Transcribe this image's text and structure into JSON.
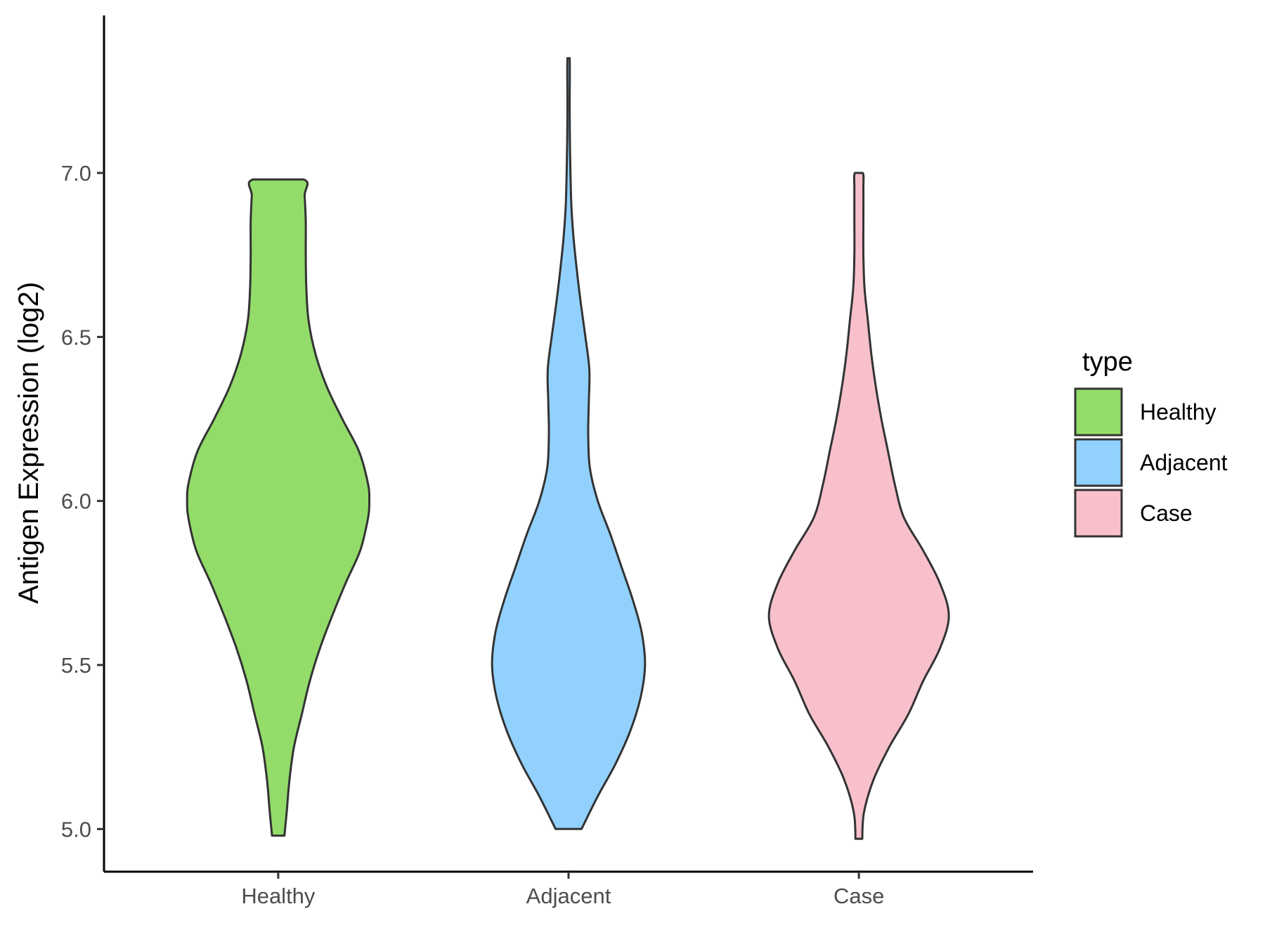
{
  "chart_data": {
    "type": "violin",
    "title": "",
    "xlabel": "",
    "ylabel": "Antigen Expression (log2)",
    "ylim": [
      4.87,
      7.48
    ],
    "yticks": [
      5.0,
      5.5,
      6.0,
      6.5,
      7.0
    ],
    "ytick_labels": [
      "5.0",
      "5.5",
      "6.0",
      "6.5",
      "7.0"
    ],
    "categories": [
      "Healthy",
      "Adjacent",
      "Case"
    ],
    "grid": false,
    "legend": {
      "title": "type",
      "position": "right",
      "entries": [
        "Healthy",
        "Adjacent",
        "Case"
      ]
    },
    "series": [
      {
        "name": "Healthy",
        "color": "#93DC6A",
        "min": 4.98,
        "max": 6.98,
        "density": [
          [
            4.98,
            0.055
          ],
          [
            5.05,
            0.075
          ],
          [
            5.15,
            0.1
          ],
          [
            5.25,
            0.14
          ],
          [
            5.35,
            0.21
          ],
          [
            5.45,
            0.28
          ],
          [
            5.55,
            0.37
          ],
          [
            5.65,
            0.48
          ],
          [
            5.75,
            0.6
          ],
          [
            5.85,
            0.73
          ],
          [
            5.95,
            0.8
          ],
          [
            6.0,
            0.81
          ],
          [
            6.05,
            0.8
          ],
          [
            6.15,
            0.72
          ],
          [
            6.25,
            0.57
          ],
          [
            6.35,
            0.43
          ],
          [
            6.45,
            0.33
          ],
          [
            6.55,
            0.27
          ],
          [
            6.65,
            0.25
          ],
          [
            6.75,
            0.245
          ],
          [
            6.85,
            0.245
          ],
          [
            6.93,
            0.235
          ],
          [
            6.98,
            0.225
          ]
        ]
      },
      {
        "name": "Adjacent",
        "color": "#92D1FE",
        "min": 5.0,
        "max": 7.35,
        "density": [
          [
            5.0,
            0.115
          ],
          [
            5.1,
            0.26
          ],
          [
            5.2,
            0.42
          ],
          [
            5.3,
            0.55
          ],
          [
            5.4,
            0.64
          ],
          [
            5.5,
            0.68
          ],
          [
            5.6,
            0.65
          ],
          [
            5.7,
            0.57
          ],
          [
            5.8,
            0.47
          ],
          [
            5.9,
            0.37
          ],
          [
            6.0,
            0.26
          ],
          [
            6.1,
            0.19
          ],
          [
            6.2,
            0.175
          ],
          [
            6.3,
            0.18
          ],
          [
            6.4,
            0.185
          ],
          [
            6.5,
            0.15
          ],
          [
            6.6,
            0.11
          ],
          [
            6.7,
            0.075
          ],
          [
            6.8,
            0.045
          ],
          [
            6.9,
            0.025
          ],
          [
            7.0,
            0.017
          ],
          [
            7.1,
            0.012
          ],
          [
            7.2,
            0.01
          ],
          [
            7.35,
            0.01
          ]
        ]
      },
      {
        "name": "Case",
        "color": "#F7C0CB",
        "min": 4.97,
        "max": 7.0,
        "density": [
          [
            4.97,
            0.03
          ],
          [
            5.05,
            0.045
          ],
          [
            5.15,
            0.13
          ],
          [
            5.25,
            0.27
          ],
          [
            5.35,
            0.44
          ],
          [
            5.45,
            0.57
          ],
          [
            5.55,
            0.72
          ],
          [
            5.65,
            0.8
          ],
          [
            5.75,
            0.72
          ],
          [
            5.85,
            0.57
          ],
          [
            5.95,
            0.4
          ],
          [
            6.05,
            0.32
          ],
          [
            6.15,
            0.26
          ],
          [
            6.25,
            0.2
          ],
          [
            6.35,
            0.15
          ],
          [
            6.45,
            0.11
          ],
          [
            6.55,
            0.08
          ],
          [
            6.65,
            0.05
          ],
          [
            6.75,
            0.04
          ],
          [
            6.85,
            0.04
          ],
          [
            6.95,
            0.04
          ],
          [
            7.0,
            0.035
          ]
        ]
      }
    ]
  }
}
